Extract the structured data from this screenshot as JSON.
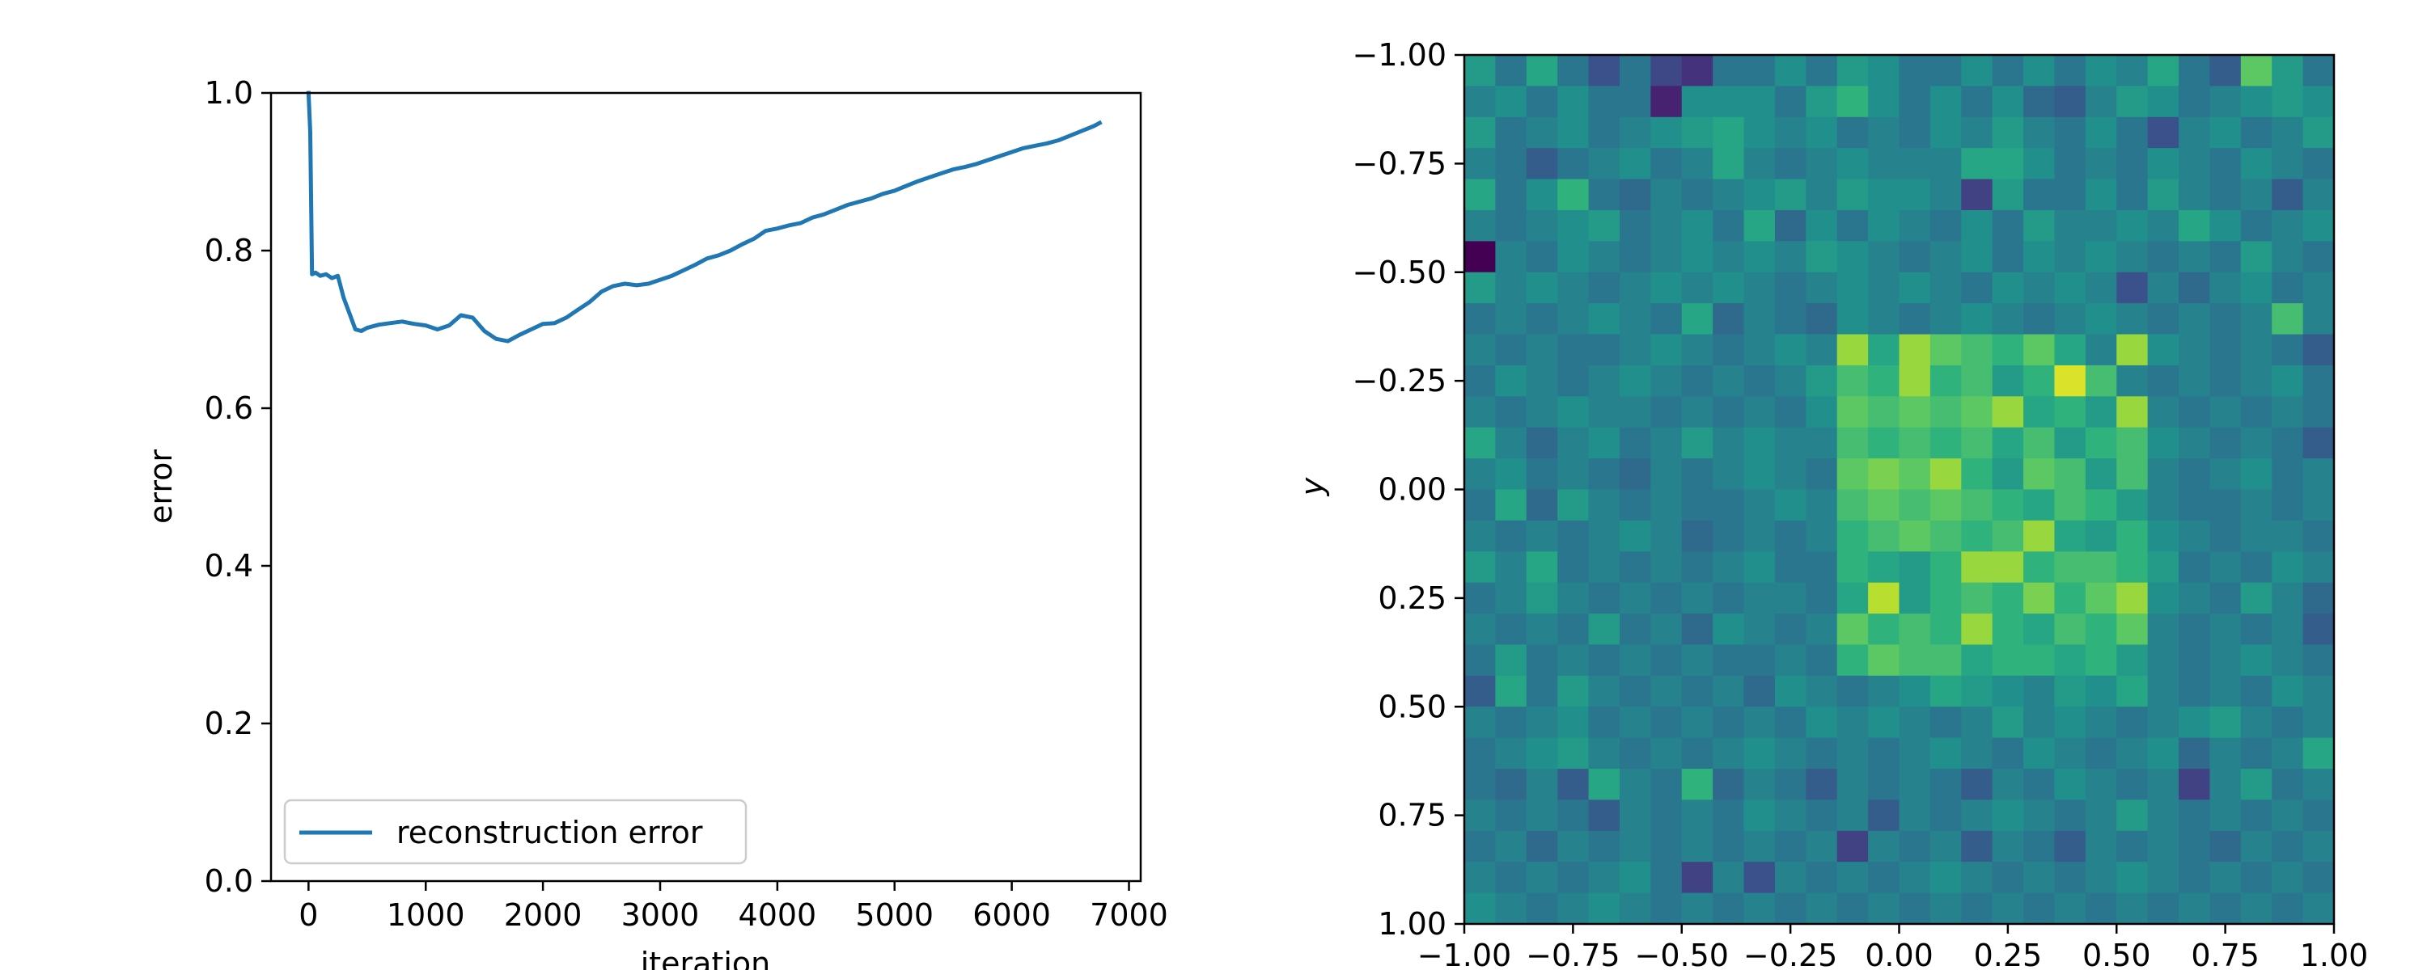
{
  "chart_data": [
    {
      "type": "line",
      "title": "",
      "xlabel": "iteration",
      "ylabel": "error",
      "xlim": [
        -320,
        7100
      ],
      "ylim": [
        0.0,
        1.0
      ],
      "xticks": [
        0,
        1000,
        2000,
        3000,
        4000,
        5000,
        6000,
        7000
      ],
      "xtick_labels": [
        "0",
        "1000",
        "2000",
        "3000",
        "4000",
        "5000",
        "6000",
        "7000"
      ],
      "yticks": [
        0.0,
        0.2,
        0.4,
        0.6,
        0.8,
        1.0
      ],
      "ytick_labels": [
        "0.0",
        "0.2",
        "0.4",
        "0.6",
        "0.8",
        "1.0"
      ],
      "grid": false,
      "legend": "lower-left",
      "series": [
        {
          "name": "reconstruction error",
          "color": "#1f77b4",
          "x": [
            0,
            15,
            30,
            60,
            100,
            150,
            200,
            250,
            300,
            350,
            400,
            450,
            500,
            600,
            700,
            800,
            900,
            1000,
            1100,
            1200,
            1300,
            1400,
            1500,
            1600,
            1700,
            1800,
            1900,
            2000,
            2100,
            2200,
            2300,
            2400,
            2500,
            2600,
            2700,
            2800,
            2900,
            3000,
            3100,
            3200,
            3300,
            3400,
            3500,
            3600,
            3700,
            3800,
            3900,
            4000,
            4100,
            4200,
            4300,
            4400,
            4500,
            4600,
            4700,
            4800,
            4900,
            5000,
            5100,
            5200,
            5300,
            5400,
            5500,
            5600,
            5700,
            5800,
            5900,
            6000,
            6100,
            6200,
            6300,
            6400,
            6500,
            6600,
            6700,
            6750
          ],
          "y": [
            1.0,
            0.95,
            0.77,
            0.772,
            0.768,
            0.77,
            0.765,
            0.768,
            0.74,
            0.72,
            0.7,
            0.698,
            0.702,
            0.706,
            0.708,
            0.71,
            0.707,
            0.705,
            0.7,
            0.705,
            0.718,
            0.715,
            0.698,
            0.688,
            0.685,
            0.693,
            0.7,
            0.707,
            0.708,
            0.715,
            0.725,
            0.735,
            0.748,
            0.755,
            0.758,
            0.756,
            0.758,
            0.763,
            0.768,
            0.775,
            0.782,
            0.79,
            0.794,
            0.8,
            0.808,
            0.815,
            0.825,
            0.828,
            0.832,
            0.835,
            0.842,
            0.846,
            0.852,
            0.858,
            0.862,
            0.866,
            0.872,
            0.876,
            0.882,
            0.888,
            0.893,
            0.898,
            0.903,
            0.906,
            0.91,
            0.915,
            0.92,
            0.925,
            0.93,
            0.933,
            0.936,
            0.94,
            0.946,
            0.952,
            0.958,
            0.962
          ]
        }
      ]
    },
    {
      "type": "heatmap",
      "title": "",
      "xlabel": "",
      "ylabel": "y",
      "xlim": [
        -1.0,
        1.0
      ],
      "ylim": [
        -1.0,
        1.0
      ],
      "y_inverted": true,
      "xticks": [
        -1.0,
        -0.75,
        -0.5,
        -0.25,
        0.0,
        0.25,
        0.5,
        0.75,
        1.0
      ],
      "xtick_labels": [
        "−1.00",
        "−0.75",
        "−0.50",
        "−0.25",
        "0.00",
        "0.25",
        "0.50",
        "0.75",
        "1.00"
      ],
      "yticks": [
        -1.0,
        -0.75,
        -0.5,
        -0.25,
        0.0,
        0.25,
        0.5,
        0.75,
        1.0
      ],
      "ytick_labels": [
        "−1.00",
        "−0.75",
        "−0.50",
        "−0.25",
        "0.00",
        "0.25",
        "0.50",
        "0.75",
        "1.00"
      ],
      "colormap": "viridis",
      "grid_size": [
        28,
        28
      ],
      "value_range": [
        0,
        1
      ],
      "values": [
        [
          0.55,
          0.4,
          0.6,
          0.4,
          0.25,
          0.4,
          0.22,
          0.15,
          0.4,
          0.4,
          0.5,
          0.4,
          0.55,
          0.5,
          0.4,
          0.4,
          0.5,
          0.4,
          0.5,
          0.4,
          0.5,
          0.45,
          0.6,
          0.4,
          0.3,
          0.75,
          0.55,
          0.4
        ],
        [
          0.45,
          0.5,
          0.4,
          0.5,
          0.4,
          0.4,
          0.1,
          0.5,
          0.5,
          0.5,
          0.4,
          0.55,
          0.65,
          0.5,
          0.4,
          0.5,
          0.4,
          0.5,
          0.35,
          0.3,
          0.45,
          0.55,
          0.5,
          0.4,
          0.45,
          0.5,
          0.55,
          0.5
        ],
        [
          0.55,
          0.4,
          0.45,
          0.5,
          0.4,
          0.45,
          0.5,
          0.55,
          0.6,
          0.5,
          0.45,
          0.5,
          0.4,
          0.45,
          0.4,
          0.5,
          0.45,
          0.55,
          0.45,
          0.4,
          0.5,
          0.4,
          0.25,
          0.45,
          0.5,
          0.4,
          0.45,
          0.55
        ],
        [
          0.45,
          0.4,
          0.3,
          0.4,
          0.45,
          0.5,
          0.4,
          0.45,
          0.6,
          0.45,
          0.4,
          0.45,
          0.5,
          0.45,
          0.45,
          0.45,
          0.6,
          0.6,
          0.5,
          0.4,
          0.45,
          0.4,
          0.5,
          0.45,
          0.4,
          0.5,
          0.45,
          0.4
        ],
        [
          0.6,
          0.4,
          0.5,
          0.65,
          0.4,
          0.35,
          0.45,
          0.4,
          0.45,
          0.5,
          0.55,
          0.45,
          0.55,
          0.5,
          0.5,
          0.45,
          0.2,
          0.55,
          0.4,
          0.4,
          0.5,
          0.4,
          0.55,
          0.45,
          0.4,
          0.45,
          0.3,
          0.45
        ],
        [
          0.45,
          0.4,
          0.45,
          0.5,
          0.55,
          0.4,
          0.45,
          0.5,
          0.4,
          0.6,
          0.35,
          0.5,
          0.4,
          0.5,
          0.45,
          0.4,
          0.5,
          0.4,
          0.55,
          0.45,
          0.45,
          0.5,
          0.45,
          0.6,
          0.5,
          0.4,
          0.45,
          0.5
        ],
        [
          0.0,
          0.45,
          0.4,
          0.5,
          0.45,
          0.4,
          0.45,
          0.5,
          0.45,
          0.5,
          0.45,
          0.55,
          0.5,
          0.45,
          0.4,
          0.45,
          0.5,
          0.4,
          0.5,
          0.45,
          0.5,
          0.45,
          0.4,
          0.45,
          0.4,
          0.55,
          0.45,
          0.4
        ],
        [
          0.55,
          0.45,
          0.5,
          0.45,
          0.4,
          0.45,
          0.5,
          0.45,
          0.5,
          0.45,
          0.4,
          0.45,
          0.5,
          0.45,
          0.5,
          0.45,
          0.4,
          0.5,
          0.45,
          0.5,
          0.45,
          0.25,
          0.45,
          0.35,
          0.45,
          0.5,
          0.4,
          0.45
        ],
        [
          0.4,
          0.45,
          0.4,
          0.45,
          0.5,
          0.45,
          0.4,
          0.6,
          0.35,
          0.45,
          0.4,
          0.35,
          0.5,
          0.45,
          0.4,
          0.45,
          0.5,
          0.45,
          0.4,
          0.45,
          0.5,
          0.45,
          0.4,
          0.45,
          0.4,
          0.45,
          0.7,
          0.45
        ],
        [
          0.45,
          0.4,
          0.45,
          0.4,
          0.4,
          0.45,
          0.5,
          0.45,
          0.4,
          0.45,
          0.5,
          0.45,
          0.85,
          0.6,
          0.85,
          0.75,
          0.7,
          0.65,
          0.75,
          0.6,
          0.45,
          0.85,
          0.5,
          0.45,
          0.4,
          0.45,
          0.4,
          0.3
        ],
        [
          0.4,
          0.5,
          0.45,
          0.4,
          0.45,
          0.5,
          0.45,
          0.4,
          0.45,
          0.4,
          0.45,
          0.55,
          0.7,
          0.65,
          0.85,
          0.65,
          0.7,
          0.55,
          0.65,
          0.95,
          0.7,
          0.45,
          0.4,
          0.45,
          0.4,
          0.45,
          0.5,
          0.4
        ],
        [
          0.45,
          0.4,
          0.45,
          0.5,
          0.45,
          0.45,
          0.4,
          0.45,
          0.4,
          0.45,
          0.4,
          0.5,
          0.75,
          0.7,
          0.75,
          0.7,
          0.75,
          0.85,
          0.6,
          0.65,
          0.55,
          0.85,
          0.45,
          0.4,
          0.45,
          0.4,
          0.45,
          0.4
        ],
        [
          0.6,
          0.45,
          0.35,
          0.45,
          0.5,
          0.4,
          0.45,
          0.55,
          0.45,
          0.5,
          0.45,
          0.45,
          0.7,
          0.65,
          0.7,
          0.65,
          0.7,
          0.6,
          0.7,
          0.55,
          0.65,
          0.7,
          0.5,
          0.45,
          0.4,
          0.45,
          0.4,
          0.3
        ],
        [
          0.45,
          0.5,
          0.4,
          0.45,
          0.4,
          0.35,
          0.45,
          0.4,
          0.45,
          0.5,
          0.45,
          0.4,
          0.75,
          0.8,
          0.75,
          0.85,
          0.65,
          0.55,
          0.75,
          0.7,
          0.55,
          0.7,
          0.45,
          0.4,
          0.45,
          0.5,
          0.4,
          0.45
        ],
        [
          0.4,
          0.6,
          0.35,
          0.55,
          0.45,
          0.4,
          0.45,
          0.4,
          0.4,
          0.45,
          0.5,
          0.45,
          0.7,
          0.75,
          0.7,
          0.75,
          0.7,
          0.65,
          0.6,
          0.7,
          0.65,
          0.55,
          0.45,
          0.4,
          0.4,
          0.45,
          0.4,
          0.45
        ],
        [
          0.45,
          0.4,
          0.45,
          0.4,
          0.45,
          0.5,
          0.45,
          0.35,
          0.4,
          0.45,
          0.4,
          0.45,
          0.65,
          0.7,
          0.75,
          0.7,
          0.65,
          0.7,
          0.85,
          0.6,
          0.55,
          0.65,
          0.5,
          0.45,
          0.4,
          0.45,
          0.45,
          0.4
        ],
        [
          0.55,
          0.45,
          0.6,
          0.4,
          0.45,
          0.4,
          0.45,
          0.4,
          0.45,
          0.5,
          0.4,
          0.4,
          0.65,
          0.6,
          0.55,
          0.65,
          0.85,
          0.85,
          0.65,
          0.7,
          0.7,
          0.65,
          0.55,
          0.4,
          0.45,
          0.4,
          0.5,
          0.45
        ],
        [
          0.4,
          0.45,
          0.55,
          0.45,
          0.4,
          0.45,
          0.4,
          0.45,
          0.4,
          0.45,
          0.45,
          0.4,
          0.6,
          0.9,
          0.55,
          0.65,
          0.7,
          0.65,
          0.8,
          0.65,
          0.75,
          0.85,
          0.5,
          0.45,
          0.4,
          0.55,
          0.45,
          0.35
        ],
        [
          0.45,
          0.4,
          0.45,
          0.4,
          0.55,
          0.4,
          0.45,
          0.35,
          0.5,
          0.45,
          0.4,
          0.45,
          0.75,
          0.65,
          0.7,
          0.65,
          0.85,
          0.65,
          0.6,
          0.7,
          0.65,
          0.75,
          0.45,
          0.4,
          0.45,
          0.4,
          0.45,
          0.3
        ],
        [
          0.4,
          0.55,
          0.4,
          0.45,
          0.4,
          0.45,
          0.4,
          0.45,
          0.4,
          0.4,
          0.45,
          0.4,
          0.65,
          0.75,
          0.7,
          0.7,
          0.6,
          0.65,
          0.65,
          0.6,
          0.65,
          0.55,
          0.45,
          0.4,
          0.45,
          0.5,
          0.45,
          0.4
        ],
        [
          0.3,
          0.6,
          0.4,
          0.55,
          0.45,
          0.4,
          0.45,
          0.4,
          0.45,
          0.35,
          0.5,
          0.45,
          0.4,
          0.45,
          0.5,
          0.6,
          0.55,
          0.5,
          0.45,
          0.55,
          0.5,
          0.6,
          0.45,
          0.4,
          0.45,
          0.4,
          0.5,
          0.45
        ],
        [
          0.45,
          0.4,
          0.45,
          0.5,
          0.4,
          0.45,
          0.4,
          0.45,
          0.4,
          0.45,
          0.4,
          0.5,
          0.45,
          0.5,
          0.45,
          0.4,
          0.45,
          0.55,
          0.45,
          0.5,
          0.45,
          0.4,
          0.45,
          0.5,
          0.55,
          0.45,
          0.4,
          0.45
        ],
        [
          0.4,
          0.45,
          0.5,
          0.55,
          0.45,
          0.4,
          0.45,
          0.4,
          0.45,
          0.5,
          0.45,
          0.4,
          0.45,
          0.4,
          0.45,
          0.5,
          0.45,
          0.4,
          0.5,
          0.45,
          0.4,
          0.45,
          0.5,
          0.35,
          0.45,
          0.4,
          0.45,
          0.6
        ],
        [
          0.4,
          0.35,
          0.45,
          0.3,
          0.6,
          0.45,
          0.4,
          0.65,
          0.35,
          0.45,
          0.4,
          0.3,
          0.45,
          0.4,
          0.45,
          0.4,
          0.3,
          0.45,
          0.4,
          0.5,
          0.45,
          0.4,
          0.45,
          0.2,
          0.45,
          0.55,
          0.4,
          0.45
        ],
        [
          0.45,
          0.4,
          0.45,
          0.4,
          0.3,
          0.45,
          0.4,
          0.45,
          0.4,
          0.5,
          0.45,
          0.4,
          0.45,
          0.3,
          0.45,
          0.4,
          0.45,
          0.5,
          0.45,
          0.4,
          0.45,
          0.55,
          0.45,
          0.4,
          0.45,
          0.4,
          0.45,
          0.4
        ],
        [
          0.4,
          0.45,
          0.35,
          0.45,
          0.4,
          0.45,
          0.4,
          0.45,
          0.4,
          0.45,
          0.4,
          0.45,
          0.2,
          0.45,
          0.4,
          0.45,
          0.3,
          0.45,
          0.4,
          0.3,
          0.45,
          0.4,
          0.45,
          0.4,
          0.35,
          0.45,
          0.4,
          0.45
        ],
        [
          0.45,
          0.4,
          0.45,
          0.4,
          0.45,
          0.5,
          0.4,
          0.2,
          0.45,
          0.25,
          0.45,
          0.4,
          0.45,
          0.4,
          0.45,
          0.5,
          0.45,
          0.4,
          0.45,
          0.4,
          0.45,
          0.5,
          0.45,
          0.4,
          0.45,
          0.4,
          0.45,
          0.4
        ],
        [
          0.5,
          0.45,
          0.4,
          0.45,
          0.5,
          0.45,
          0.4,
          0.45,
          0.4,
          0.45,
          0.4,
          0.45,
          0.4,
          0.45,
          0.4,
          0.45,
          0.4,
          0.45,
          0.4,
          0.45,
          0.4,
          0.45,
          0.4,
          0.45,
          0.4,
          0.45,
          0.4,
          0.45
        ]
      ]
    }
  ]
}
